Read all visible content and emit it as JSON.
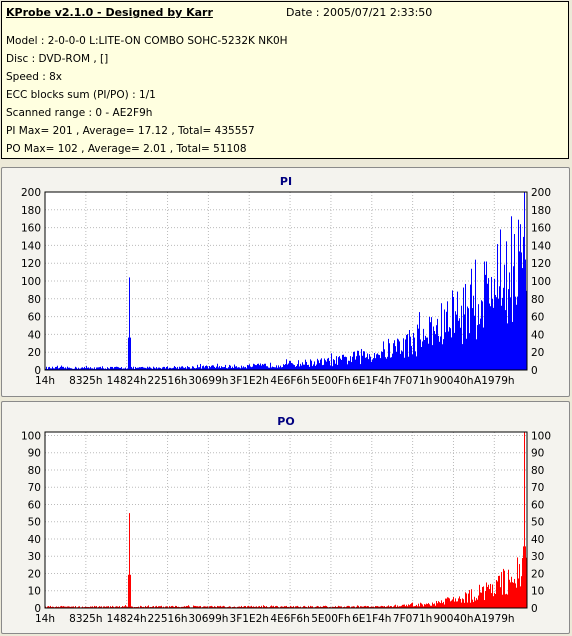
{
  "info": {
    "app_title": "KProbe v2.1.0 - Designed by Karr",
    "date": "Date : 2005/07/21 2:33:50",
    "lines": [
      "Model : 2-0-0-0 L:LITE-ON COMBO SOHC-5232K NK0H",
      "Disc : DVD-ROM ,  []",
      "Speed : 8x",
      "ECC blocks sum (PI/PO) : 1/1",
      "Scanned range : 0 - AE2F9h",
      "PI Max= 201 , Average= 17.12 , Total= 435557",
      "PO Max= 102 , Average= 2.01 , Total= 51108"
    ]
  },
  "chart_data": [
    {
      "type": "area",
      "title": "PI",
      "color": "#0000ff",
      "x_tick_labels": [
        "14h",
        "8325h",
        "14824h",
        "22516h",
        "30699h",
        "3F1E2h",
        "4E6F6h",
        "5E00Fh",
        "6E1F4h",
        "7F071h",
        "90040h",
        "A1979h"
      ],
      "y_ticks": [
        0,
        20,
        40,
        60,
        80,
        100,
        120,
        140,
        160,
        180,
        200
      ],
      "ylim": [
        0,
        200
      ],
      "spikes": [
        {
          "x": 0.175,
          "value": 104
        },
        {
          "x": 0.995,
          "value": 201
        }
      ],
      "profile": [
        [
          0,
          3
        ],
        [
          0.1,
          3
        ],
        [
          0.2,
          3
        ],
        [
          0.3,
          4
        ],
        [
          0.4,
          5
        ],
        [
          0.45,
          6
        ],
        [
          0.5,
          8
        ],
        [
          0.55,
          10
        ],
        [
          0.6,
          12
        ],
        [
          0.65,
          18
        ],
        [
          0.7,
          26
        ],
        [
          0.75,
          36
        ],
        [
          0.8,
          52
        ],
        [
          0.85,
          72
        ],
        [
          0.9,
          100
        ],
        [
          0.95,
          130
        ],
        [
          1.0,
          160
        ]
      ]
    },
    {
      "type": "area",
      "title": "PO",
      "color": "#ff0000",
      "x_tick_labels": [
        "14h",
        "8325h",
        "14824h",
        "22516h",
        "30699h",
        "3F1E2h",
        "4E6F6h",
        "5E00Fh",
        "6E1F4h",
        "7F071h",
        "90040h",
        "A1979h"
      ],
      "y_ticks": [
        0,
        10,
        20,
        30,
        40,
        50,
        60,
        70,
        80,
        90,
        100
      ],
      "ylim": [
        0,
        102
      ],
      "spikes": [
        {
          "x": 0.175,
          "value": 55
        },
        {
          "x": 0.995,
          "value": 102
        }
      ],
      "profile": [
        [
          0,
          1
        ],
        [
          0.5,
          1
        ],
        [
          0.7,
          1
        ],
        [
          0.75,
          2
        ],
        [
          0.8,
          3
        ],
        [
          0.85,
          6
        ],
        [
          0.9,
          10
        ],
        [
          0.95,
          18
        ],
        [
          1.0,
          28
        ]
      ]
    }
  ]
}
